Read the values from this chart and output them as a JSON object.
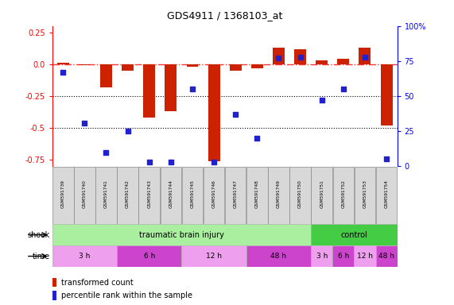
{
  "title": "GDS4911 / 1368103_at",
  "samples": [
    "GSM591739",
    "GSM591740",
    "GSM591741",
    "GSM591742",
    "GSM591743",
    "GSM591744",
    "GSM591745",
    "GSM591746",
    "GSM591747",
    "GSM591748",
    "GSM591749",
    "GSM591750",
    "GSM591751",
    "GSM591752",
    "GSM591753",
    "GSM591754"
  ],
  "bar_values": [
    0.01,
    -0.01,
    -0.18,
    -0.05,
    -0.42,
    -0.37,
    -0.02,
    -0.76,
    -0.05,
    -0.03,
    0.13,
    0.12,
    0.03,
    0.04,
    0.13,
    -0.48
  ],
  "dot_values": [
    67,
    31,
    10,
    25,
    3,
    3,
    55,
    3,
    37,
    20,
    77,
    78,
    47,
    55,
    78,
    5
  ],
  "bar_color": "#cc2200",
  "dot_color": "#2222cc",
  "ylim_left": [
    -0.8,
    0.3
  ],
  "ylim_right": [
    0,
    100
  ],
  "yticks_left": [
    -0.75,
    -0.5,
    -0.25,
    0.0,
    0.25
  ],
  "yticks_right": [
    0,
    25,
    50,
    75,
    100
  ],
  "hline_y": 0.0,
  "dotted_lines": [
    -0.25,
    -0.5
  ],
  "shock_groups": [
    {
      "label": "traumatic brain injury",
      "start": 0,
      "end": 12,
      "color": "#aaeea0"
    },
    {
      "label": "control",
      "start": 12,
      "end": 16,
      "color": "#44cc44"
    }
  ],
  "time_groups": [
    {
      "label": "3 h",
      "start": 0,
      "end": 3,
      "color": "#eea0ee"
    },
    {
      "label": "6 h",
      "start": 3,
      "end": 6,
      "color": "#cc44cc"
    },
    {
      "label": "12 h",
      "start": 6,
      "end": 9,
      "color": "#eea0ee"
    },
    {
      "label": "48 h",
      "start": 9,
      "end": 12,
      "color": "#cc44cc"
    },
    {
      "label": "3 h",
      "start": 12,
      "end": 13,
      "color": "#eea0ee"
    },
    {
      "label": "6 h",
      "start": 13,
      "end": 14,
      "color": "#cc44cc"
    },
    {
      "label": "12 h",
      "start": 14,
      "end": 15,
      "color": "#eea0ee"
    },
    {
      "label": "48 h",
      "start": 15,
      "end": 16,
      "color": "#cc44cc"
    }
  ],
  "shock_label": "shock",
  "time_label": "time",
  "legend_bar": "transformed count",
  "legend_dot": "percentile rank within the sample",
  "background_color": "#ffffff"
}
